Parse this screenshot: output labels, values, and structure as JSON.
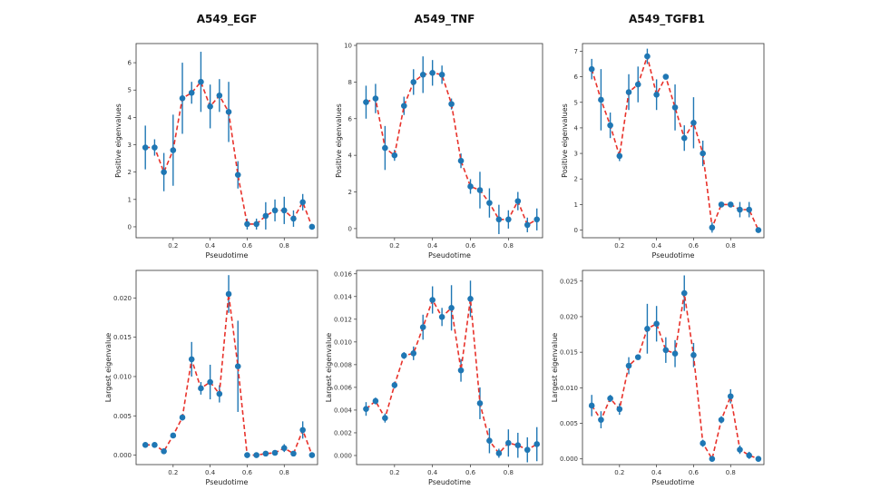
{
  "titles": {
    "egf": "A549_EGF",
    "tnf": "A549_TNF",
    "tgfb1": "A549_TGFB1"
  },
  "colors": {
    "marker": "#1f77b4",
    "line": "#e8322b",
    "errorbar": "#1f77b4",
    "frame": "#333333"
  },
  "chart_data": [
    {
      "type": "scatter",
      "title": "A549_EGF",
      "xlabel": "Pseudotime",
      "ylabel": "Positive eigenvalues",
      "xlim": [
        0.0,
        0.98
      ],
      "ylim": [
        -0.4,
        6.7
      ],
      "xticks": [
        0.2,
        0.4,
        0.6,
        0.8
      ],
      "xtick_labels": [
        "0.2",
        "0.4",
        "0.6",
        "0.8"
      ],
      "yticks": [
        0,
        1,
        2,
        3,
        4,
        5,
        6
      ],
      "ytick_labels": [
        "0",
        "1",
        "2",
        "3",
        "4",
        "5",
        "6"
      ],
      "x": [
        0.05,
        0.1,
        0.15,
        0.2,
        0.25,
        0.3,
        0.35,
        0.4,
        0.45,
        0.5,
        0.55,
        0.6,
        0.65,
        0.7,
        0.75,
        0.8,
        0.85,
        0.9,
        0.95
      ],
      "y": [
        2.9,
        2.9,
        2.0,
        2.8,
        4.7,
        4.9,
        5.3,
        4.4,
        4.8,
        4.2,
        1.9,
        0.1,
        0.1,
        0.4,
        0.6,
        0.6,
        0.3,
        0.9,
        0.0
      ],
      "err": [
        0.8,
        0.3,
        0.7,
        1.3,
        1.3,
        0.4,
        1.1,
        0.8,
        0.6,
        1.1,
        0.5,
        0.2,
        0.2,
        0.5,
        0.4,
        0.5,
        0.3,
        0.3,
        0.05
      ]
    },
    {
      "type": "scatter",
      "title": "A549_TNF",
      "xlabel": "Pseudotime",
      "ylabel": "Positive eigenvalues",
      "xlim": [
        0.0,
        0.98
      ],
      "ylim": [
        -0.5,
        10.1
      ],
      "xticks": [
        0.2,
        0.4,
        0.6,
        0.8
      ],
      "xtick_labels": [
        "0.2",
        "0.4",
        "0.6",
        "0.8"
      ],
      "yticks": [
        0,
        2,
        4,
        6,
        8,
        10
      ],
      "ytick_labels": [
        "0",
        "2",
        "4",
        "6",
        "8",
        "10"
      ],
      "x": [
        0.05,
        0.1,
        0.15,
        0.2,
        0.25,
        0.3,
        0.35,
        0.4,
        0.45,
        0.5,
        0.55,
        0.6,
        0.65,
        0.7,
        0.75,
        0.8,
        0.85,
        0.9,
        0.95
      ],
      "y": [
        6.9,
        7.1,
        4.4,
        4.0,
        6.7,
        8.0,
        8.4,
        8.5,
        8.4,
        6.8,
        3.7,
        2.3,
        2.1,
        1.4,
        0.5,
        0.5,
        1.5,
        0.2,
        0.5
      ],
      "err": [
        0.9,
        0.8,
        1.2,
        0.3,
        0.5,
        0.7,
        1.0,
        0.7,
        0.5,
        0.3,
        0.4,
        0.4,
        1.0,
        0.8,
        0.8,
        0.5,
        0.5,
        0.4,
        0.6
      ]
    },
    {
      "type": "scatter",
      "title": "A549_TGFB1",
      "xlabel": "Pseudotime",
      "ylabel": "Positive eigenvalues",
      "xlim": [
        0.0,
        0.98
      ],
      "ylim": [
        -0.3,
        7.3
      ],
      "xticks": [
        0.2,
        0.4,
        0.6,
        0.8
      ],
      "xtick_labels": [
        "0.2",
        "0.4",
        "0.6",
        "0.8"
      ],
      "yticks": [
        0,
        1,
        2,
        3,
        4,
        5,
        6,
        7
      ],
      "ytick_labels": [
        "0",
        "1",
        "2",
        "3",
        "4",
        "5",
        "6",
        "7"
      ],
      "x": [
        0.05,
        0.1,
        0.15,
        0.2,
        0.25,
        0.3,
        0.35,
        0.4,
        0.45,
        0.5,
        0.55,
        0.6,
        0.65,
        0.7,
        0.75,
        0.8,
        0.85,
        0.9,
        0.95
      ],
      "y": [
        6.3,
        5.1,
        4.1,
        2.9,
        5.4,
        5.7,
        6.8,
        5.3,
        6.0,
        4.8,
        3.6,
        4.2,
        3.0,
        0.1,
        1.0,
        1.0,
        0.8,
        0.8,
        0.0
      ],
      "err": [
        0.4,
        1.2,
        0.5,
        0.2,
        0.7,
        0.7,
        0.3,
        0.6,
        0.1,
        0.9,
        0.5,
        1.0,
        0.5,
        0.2,
        0.1,
        0.1,
        0.3,
        0.3,
        0.05
      ]
    },
    {
      "type": "scatter",
      "xlabel": "Pseudotime",
      "ylabel": "Largest eigenvalue",
      "xlim": [
        0.0,
        0.98
      ],
      "ylim": [
        -0.0012,
        0.0235
      ],
      "xticks": [
        0.2,
        0.4,
        0.6,
        0.8
      ],
      "xtick_labels": [
        "0.2",
        "0.4",
        "0.6",
        "0.8"
      ],
      "yticks": [
        0.0,
        0.005,
        0.01,
        0.015,
        0.02
      ],
      "ytick_labels": [
        "0.000",
        "0.005",
        "0.010",
        "0.015",
        "0.020"
      ],
      "x": [
        0.05,
        0.1,
        0.15,
        0.2,
        0.25,
        0.3,
        0.35,
        0.4,
        0.45,
        0.5,
        0.55,
        0.6,
        0.65,
        0.7,
        0.75,
        0.8,
        0.85,
        0.9,
        0.95
      ],
      "y": [
        0.0013,
        0.0013,
        0.0005,
        0.0025,
        0.0048,
        0.0122,
        0.0085,
        0.0093,
        0.0078,
        0.0205,
        0.0113,
        0.0,
        0.0,
        0.0002,
        0.0003,
        0.0009,
        0.0002,
        0.0032,
        0.0
      ],
      "err": [
        0.0002,
        0.0002,
        0.0003,
        0.0003,
        0.0004,
        0.0022,
        0.0008,
        0.0022,
        0.0011,
        0.0024,
        0.0058,
        0.0002,
        0.0002,
        0.0003,
        0.0003,
        0.0005,
        0.0002,
        0.0011,
        0.0001
      ]
    },
    {
      "type": "scatter",
      "xlabel": "Pseudotime",
      "ylabel": "Largest eigenvalue",
      "xlim": [
        0.0,
        0.98
      ],
      "ylim": [
        -0.0008,
        0.0163
      ],
      "xticks": [
        0.2,
        0.4,
        0.6,
        0.8
      ],
      "xtick_labels": [
        "0.2",
        "0.4",
        "0.6",
        "0.8"
      ],
      "yticks": [
        0.0,
        0.002,
        0.004,
        0.006,
        0.008,
        0.01,
        0.012,
        0.014,
        0.016
      ],
      "ytick_labels": [
        "0.000",
        "0.002",
        "0.004",
        "0.006",
        "0.008",
        "0.010",
        "0.012",
        "0.014",
        "0.016"
      ],
      "x": [
        0.05,
        0.1,
        0.15,
        0.2,
        0.25,
        0.3,
        0.35,
        0.4,
        0.45,
        0.5,
        0.55,
        0.6,
        0.65,
        0.7,
        0.75,
        0.8,
        0.85,
        0.9,
        0.95
      ],
      "y": [
        0.0041,
        0.0048,
        0.0033,
        0.0062,
        0.0088,
        0.009,
        0.0113,
        0.0137,
        0.0122,
        0.013,
        0.0075,
        0.0138,
        0.0046,
        0.0013,
        0.0002,
        0.0011,
        0.0009,
        0.0005,
        0.001
      ],
      "err": [
        0.0006,
        0.0003,
        0.0004,
        0.0003,
        0.0003,
        0.0006,
        0.0011,
        0.0012,
        0.0008,
        0.002,
        0.001,
        0.0016,
        0.0014,
        0.0011,
        0.0004,
        0.0012,
        0.0011,
        0.0011,
        0.0015
      ]
    },
    {
      "type": "scatter",
      "xlabel": "Pseudotime",
      "ylabel": "Largest eigenvalue",
      "xlim": [
        0.0,
        0.98
      ],
      "ylim": [
        -0.0008,
        0.0265
      ],
      "xticks": [
        0.2,
        0.4,
        0.6,
        0.8
      ],
      "xtick_labels": [
        "0.2",
        "0.4",
        "0.6",
        "0.8"
      ],
      "yticks": [
        0.0,
        0.005,
        0.01,
        0.015,
        0.02,
        0.025
      ],
      "ytick_labels": [
        "0.000",
        "0.005",
        "0.010",
        "0.015",
        "0.020",
        "0.025"
      ],
      "x": [
        0.05,
        0.1,
        0.15,
        0.2,
        0.25,
        0.3,
        0.35,
        0.4,
        0.45,
        0.5,
        0.55,
        0.6,
        0.65,
        0.7,
        0.75,
        0.8,
        0.85,
        0.9,
        0.95
      ],
      "y": [
        0.0075,
        0.0055,
        0.0085,
        0.007,
        0.0131,
        0.0143,
        0.0183,
        0.019,
        0.0153,
        0.0148,
        0.0233,
        0.0146,
        0.0022,
        0.0,
        0.0055,
        0.0088,
        0.0013,
        0.0005,
        0.0
      ],
      "err": [
        0.0015,
        0.0012,
        0.0005,
        0.0008,
        0.0012,
        0.0003,
        0.0035,
        0.0025,
        0.0018,
        0.0019,
        0.0025,
        0.0017,
        0.0005,
        0.0002,
        0.0005,
        0.001,
        0.0006,
        0.0005,
        0.0002
      ]
    }
  ]
}
